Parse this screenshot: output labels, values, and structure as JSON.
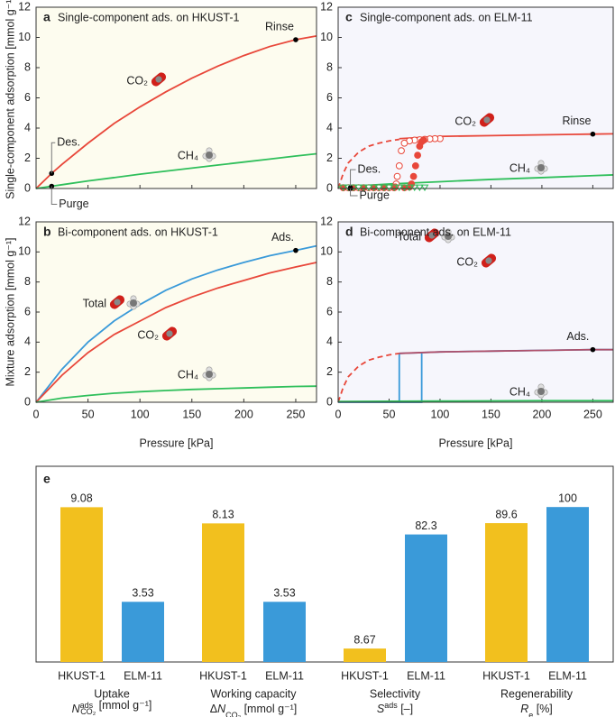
{
  "chart_data": [
    {
      "type": "line",
      "label": "a",
      "title": "Single-component ads. on HKUST-1",
      "ylabel": "Single-component adsorption [mmol g⁻¹]",
      "xlim": [
        0,
        270
      ],
      "ylim": [
        0,
        12
      ],
      "xticks": [
        0,
        50,
        100,
        150,
        200,
        250
      ],
      "yticks": [
        0,
        2,
        4,
        6,
        8,
        10,
        12
      ],
      "background": "#fdfcef",
      "series": [
        {
          "name": "CO₂",
          "color": "#e8473a",
          "x": [
            0,
            15,
            25,
            50,
            75,
            100,
            125,
            150,
            175,
            200,
            225,
            250,
            270
          ],
          "values": [
            0,
            1.0,
            1.6,
            3.0,
            4.3,
            5.4,
            6.4,
            7.3,
            8.1,
            8.8,
            9.4,
            9.85,
            10.1
          ]
        },
        {
          "name": "CH₄",
          "color": "#2fbf5b",
          "x": [
            0,
            15,
            25,
            50,
            75,
            100,
            125,
            150,
            175,
            200,
            225,
            250,
            270
          ],
          "values": [
            0,
            0.15,
            0.25,
            0.5,
            0.72,
            0.95,
            1.15,
            1.35,
            1.55,
            1.75,
            1.95,
            2.15,
            2.3
          ]
        }
      ],
      "points": [
        {
          "label": "Rinse",
          "x": 250,
          "y": 9.85
        },
        {
          "label": "Des.",
          "x": 15,
          "y": 1.0
        },
        {
          "label": "Purge",
          "x": 15,
          "y": 0.15
        }
      ]
    },
    {
      "type": "line",
      "label": "b",
      "title": "Bi-component ads. on HKUST-1",
      "ylabel": "Mixture adsorption [mmol g⁻¹]",
      "xlabel": "Pressure [kPa]",
      "xlim": [
        0,
        270
      ],
      "ylim": [
        0,
        12
      ],
      "xticks": [
        0,
        50,
        100,
        150,
        200,
        250
      ],
      "yticks": [
        0,
        2,
        4,
        6,
        8,
        10,
        12
      ],
      "background": "#fdfcef",
      "series": [
        {
          "name": "Total",
          "color": "#3a9ad9",
          "x": [
            0,
            25,
            50,
            75,
            100,
            125,
            150,
            175,
            200,
            225,
            250,
            270
          ],
          "values": [
            0,
            2.2,
            4.0,
            5.4,
            6.5,
            7.45,
            8.2,
            8.8,
            9.3,
            9.75,
            10.1,
            10.4
          ]
        },
        {
          "name": "CO₂",
          "color": "#e8473a",
          "x": [
            0,
            25,
            50,
            75,
            100,
            125,
            150,
            175,
            200,
            225,
            250,
            270
          ],
          "values": [
            0,
            1.8,
            3.3,
            4.5,
            5.4,
            6.3,
            7.0,
            7.6,
            8.1,
            8.6,
            9.0,
            9.3
          ]
        },
        {
          "name": "CH₄",
          "color": "#2fbf5b",
          "x": [
            0,
            25,
            50,
            75,
            100,
            125,
            150,
            175,
            200,
            225,
            250,
            270
          ],
          "values": [
            0,
            0.28,
            0.45,
            0.6,
            0.7,
            0.78,
            0.85,
            0.9,
            0.95,
            1.0,
            1.05,
            1.07
          ]
        }
      ],
      "points": [
        {
          "label": "Ads.",
          "x": 250,
          "y": 10.1
        }
      ]
    },
    {
      "type": "line",
      "label": "c",
      "title": "Single-component ads. on ELM-11",
      "xlim": [
        0,
        270
      ],
      "ylim": [
        0,
        12
      ],
      "xticks": [
        0,
        50,
        100,
        150,
        200,
        250
      ],
      "yticks": [
        0,
        2,
        4,
        6,
        8,
        10,
        12
      ],
      "background": "#f6f6fc",
      "series": [
        {
          "color": "#e8473a",
          "dash": true,
          "x": [
            0,
            5,
            10,
            20,
            30,
            40,
            50,
            60
          ],
          "values": [
            0,
            1.0,
            1.7,
            2.4,
            2.8,
            3.0,
            3.15,
            3.25
          ]
        },
        {
          "name": "CO₂",
          "color": "#e8473a",
          "x": [
            60,
            100,
            150,
            200,
            250,
            270
          ],
          "values": [
            3.3,
            3.45,
            3.5,
            3.55,
            3.6,
            3.62
          ]
        },
        {
          "name": "CH₄",
          "color": "#2fbf5b",
          "x": [
            0,
            50,
            100,
            150,
            200,
            250,
            270
          ],
          "values": [
            0.1,
            0.3,
            0.45,
            0.6,
            0.72,
            0.85,
            0.9
          ]
        },
        {
          "marker": "circle-open",
          "color": "#e8473a",
          "x": [
            100,
            95,
            90,
            85,
            80,
            75,
            70,
            65,
            62,
            60,
            58,
            57,
            56,
            50,
            40,
            30,
            20,
            10
          ],
          "values": [
            3.3,
            3.3,
            3.28,
            3.25,
            3.22,
            3.2,
            3.15,
            3.0,
            2.5,
            1.5,
            0.8,
            0.3,
            0.1,
            0.05,
            0.05,
            0.05,
            0.05,
            0.05
          ]
        },
        {
          "marker": "circle",
          "color": "#e8473a",
          "x": [
            5,
            15,
            25,
            35,
            45,
            55,
            65,
            70,
            72,
            74,
            76,
            78,
            80,
            82,
            84
          ],
          "values": [
            0.05,
            0.05,
            0.05,
            0.05,
            0.05,
            0.05,
            0.05,
            0.1,
            0.3,
            0.8,
            1.5,
            2.2,
            2.8,
            3.1,
            3.2
          ]
        },
        {
          "marker": "triangle",
          "color": "#2fbf5b",
          "x": [
            5,
            10,
            15,
            20,
            25,
            30,
            35,
            40,
            45,
            50,
            55,
            60,
            65,
            70,
            75,
            80,
            85
          ],
          "values": [
            0.05,
            0.05,
            0.05,
            0.05,
            0.05,
            0.05,
            0.05,
            0.05,
            0.05,
            0.05,
            0.05,
            0.05,
            0.05,
            0.05,
            0.05,
            0.05,
            0.05
          ]
        }
      ],
      "points": [
        {
          "label": "Rinse",
          "x": 250,
          "y": 3.6
        },
        {
          "label": "Des.",
          "x": 12,
          "y": 0.05
        },
        {
          "label": "Purge",
          "x": 12,
          "y": 0
        }
      ]
    },
    {
      "type": "line",
      "label": "d",
      "title": "Bi-component ads. on ELM-11",
      "xlabel": "Pressure [kPa]",
      "xlim": [
        0,
        270
      ],
      "ylim": [
        0,
        12
      ],
      "xticks": [
        0,
        50,
        100,
        150,
        200,
        250
      ],
      "yticks": [
        0,
        2,
        4,
        6,
        8,
        10,
        12
      ],
      "background": "#f6f6fc",
      "series": [
        {
          "name": "Total",
          "color": "#3a9ad9",
          "x": [
            0,
            82,
            82,
            100,
            150,
            200,
            250,
            270
          ],
          "values": [
            0,
            0,
            3.3,
            3.35,
            3.4,
            3.45,
            3.5,
            3.5
          ]
        },
        {
          "color": "#3a9ad9",
          "x": [
            60,
            60,
            82
          ],
          "values": [
            0,
            3.25,
            3.3
          ]
        },
        {
          "color": "#e8473a",
          "dash": true,
          "x": [
            0,
            5,
            10,
            20,
            30,
            40,
            50,
            60
          ],
          "values": [
            0,
            1.0,
            1.7,
            2.4,
            2.8,
            3.0,
            3.15,
            3.25
          ]
        },
        {
          "name": "CO₂",
          "color": "#b0506a",
          "x": [
            60,
            100,
            150,
            200,
            250,
            270
          ],
          "values": [
            3.25,
            3.35,
            3.4,
            3.45,
            3.5,
            3.5
          ]
        },
        {
          "name": "CH₄",
          "color": "#2fbf5b",
          "x": [
            0,
            100,
            200,
            270
          ],
          "values": [
            0.05,
            0.08,
            0.1,
            0.1
          ]
        }
      ],
      "points": [
        {
          "label": "Ads.",
          "x": 250,
          "y": 3.5
        }
      ]
    },
    {
      "type": "bar",
      "label": "e",
      "colors": [
        "#f2c01e",
        "#3a9ad9"
      ],
      "groups": [
        {
          "title": "Uptake",
          "metric": [
            {
              "text": "N",
              "style": "italic"
            },
            {
              "text": "ads",
              "style": "sup"
            },
            {
              "text": "CO₂",
              "style": "sub"
            },
            {
              "text": " [mmol g⁻¹]",
              "style": "normal"
            }
          ],
          "ylim": [
            0,
            10
          ],
          "categories": [
            "HKUST-1",
            "ELM-11"
          ],
          "values": [
            9.08,
            3.53
          ]
        },
        {
          "title": "Working capacity",
          "metric": [
            {
              "text": "Δ",
              "style": "normal"
            },
            {
              "text": "N",
              "style": "italic"
            },
            {
              "text": "CO₂",
              "style": "sub"
            },
            {
              "text": " [mmol g⁻¹]",
              "style": "normal"
            }
          ],
          "ylim": [
            0,
            10
          ],
          "categories": [
            "HKUST-1",
            "ELM-11"
          ],
          "values": [
            8.13,
            3.53
          ]
        },
        {
          "title": "Selectivity",
          "metric": [
            {
              "text": "S",
              "style": "italic"
            },
            {
              "text": "ads",
              "style": "sup"
            },
            {
              "text": " [–]",
              "style": "normal"
            }
          ],
          "ylim": [
            0,
            110
          ],
          "categories": [
            "HKUST-1",
            "ELM-11"
          ],
          "values": [
            8.67,
            82.3
          ]
        },
        {
          "title": "Regenerability",
          "metric": [
            {
              "text": "R",
              "style": "italic"
            },
            {
              "text": "e",
              "style": "sub"
            },
            {
              "text": " [%]",
              "style": "normal"
            }
          ],
          "ylim": [
            0,
            110
          ],
          "categories": [
            "HKUST-1",
            "ELM-11"
          ],
          "values": [
            89.6,
            100
          ]
        }
      ]
    }
  ]
}
